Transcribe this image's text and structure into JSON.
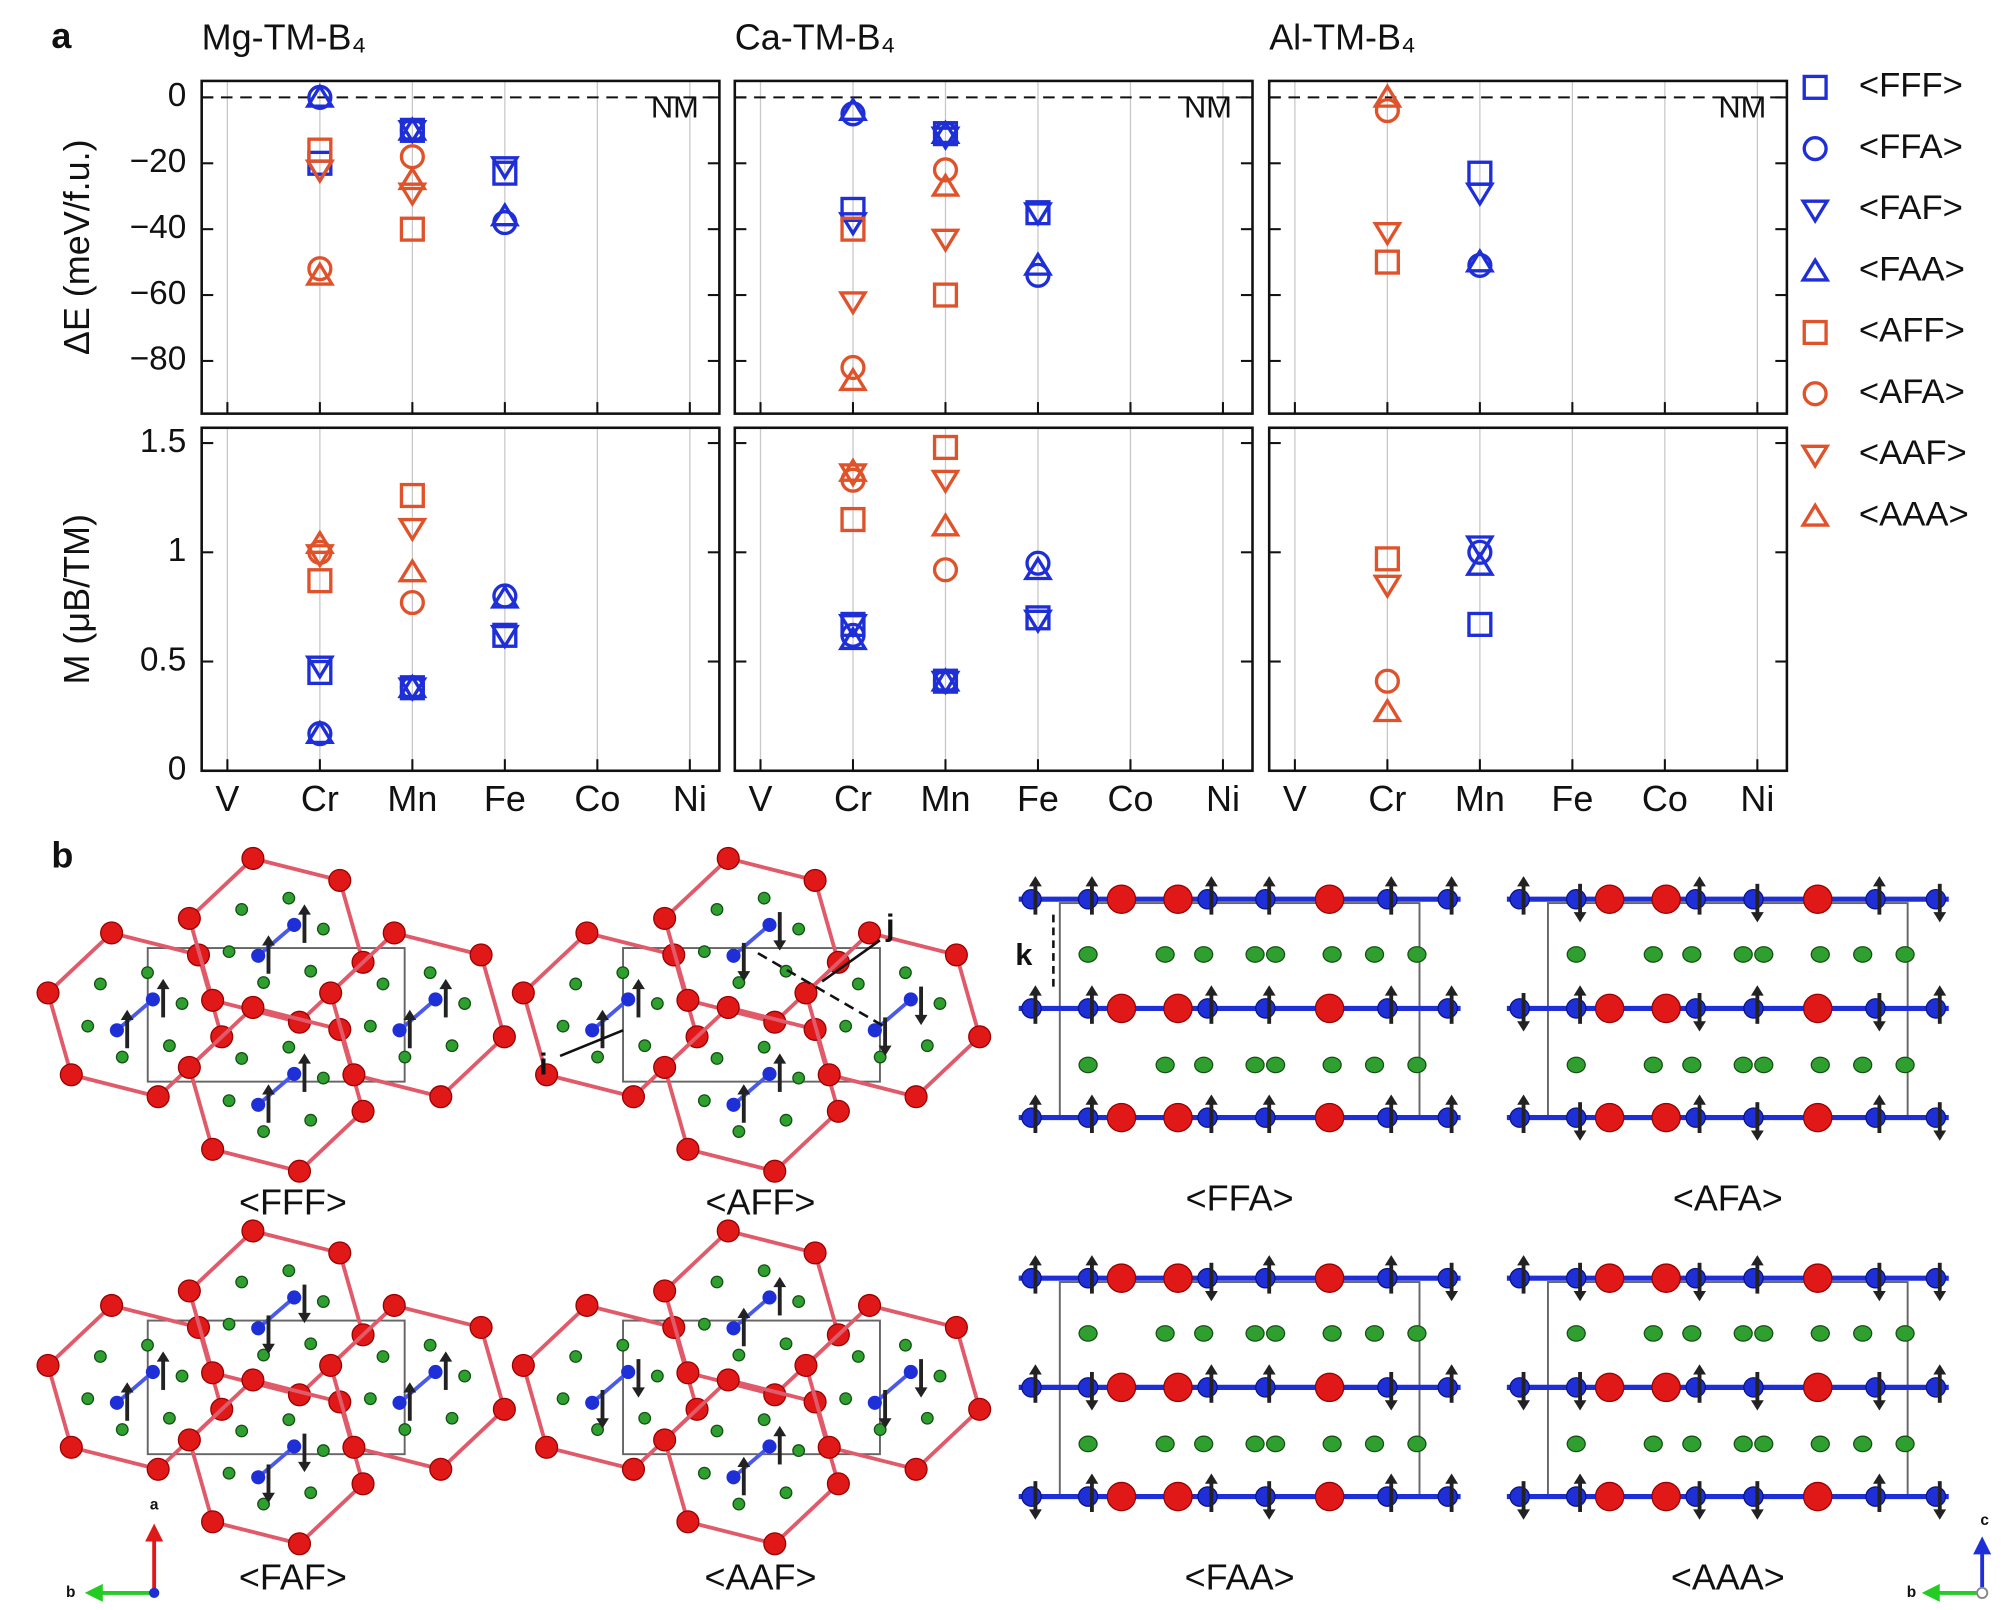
{
  "panel_a": "a",
  "panel_b": "b",
  "chart_data": [
    {
      "type": "scatter",
      "title": "Mg-TM-B₄",
      "y_label": "ΔE (meV/f.u.)",
      "annotation": "NM",
      "ref_line": 0,
      "grid": true,
      "categories": [
        "V",
        "Cr",
        "Mn",
        "Fe",
        "Co",
        "Ni"
      ],
      "ylim": [
        -96,
        5
      ],
      "yticks": [
        0,
        {
          "value": -20,
          "label": "−20"
        },
        {
          "value": -40,
          "label": "−40"
        },
        {
          "value": -60,
          "label": "−60"
        },
        {
          "value": -80,
          "label": "−80"
        }
      ],
      "series": [
        {
          "name": "<FFF>",
          "color": "#1f2fd8",
          "marker": "square",
          "values": [
            null,
            -20,
            -10,
            -23,
            null,
            null
          ]
        },
        {
          "name": "<FFA>",
          "color": "#1f2fd8",
          "marker": "circle",
          "values": [
            null,
            0,
            -10,
            -38,
            null,
            null
          ]
        },
        {
          "name": "<FAF>",
          "color": "#1f2fd8",
          "marker": "triangle-down",
          "values": [
            null,
            -22,
            -10,
            -21,
            null,
            null
          ]
        },
        {
          "name": "<FAA>",
          "color": "#1f2fd8",
          "marker": "triangle-up",
          "values": [
            null,
            0,
            -10,
            -36,
            null,
            null
          ]
        },
        {
          "name": "<AFF>",
          "color": "#e0522a",
          "marker": "square",
          "values": [
            null,
            -16,
            -40,
            null,
            null,
            null
          ]
        },
        {
          "name": "<AFA>",
          "color": "#e0522a",
          "marker": "circle",
          "values": [
            null,
            -52,
            -18,
            null,
            null,
            null
          ]
        },
        {
          "name": "<AAF>",
          "color": "#e0522a",
          "marker": "triangle-down",
          "values": [
            null,
            -22,
            -29,
            null,
            null,
            null
          ]
        },
        {
          "name": "<AAA>",
          "color": "#e0522a",
          "marker": "triangle-up",
          "values": [
            null,
            -54,
            -25,
            null,
            null,
            null
          ]
        }
      ]
    },
    {
      "type": "scatter",
      "title": "Ca-TM-B₄",
      "annotation": "NM",
      "ref_line": 0,
      "grid": true,
      "categories": [
        "V",
        "Cr",
        "Mn",
        "Fe",
        "Co",
        "Ni"
      ],
      "ylim": [
        -96,
        5
      ],
      "yticks": [
        0,
        -20,
        -40,
        -60,
        -80
      ],
      "series": [
        {
          "name": "<FFF>",
          "color": "#1f2fd8",
          "marker": "square",
          "values": [
            null,
            -34,
            -11,
            -35,
            null,
            null
          ]
        },
        {
          "name": "<FFA>",
          "color": "#1f2fd8",
          "marker": "circle",
          "values": [
            null,
            -5,
            -11,
            -54,
            null,
            null
          ]
        },
        {
          "name": "<FAF>",
          "color": "#1f2fd8",
          "marker": "triangle-down",
          "values": [
            null,
            -38,
            -12,
            -35,
            null,
            null
          ]
        },
        {
          "name": "<FAA>",
          "color": "#1f2fd8",
          "marker": "triangle-up",
          "values": [
            null,
            -4,
            -11,
            -51,
            null,
            null
          ]
        },
        {
          "name": "<AFF>",
          "color": "#e0522a",
          "marker": "square",
          "values": [
            null,
            -40,
            -60,
            null,
            null,
            null
          ]
        },
        {
          "name": "<AFA>",
          "color": "#e0522a",
          "marker": "circle",
          "values": [
            null,
            -82,
            -22,
            null,
            null,
            null
          ]
        },
        {
          "name": "<AAF>",
          "color": "#e0522a",
          "marker": "triangle-down",
          "values": [
            null,
            -62,
            -43,
            null,
            null,
            null
          ]
        },
        {
          "name": "<AAA>",
          "color": "#e0522a",
          "marker": "triangle-up",
          "values": [
            null,
            -86,
            -27,
            null,
            null,
            null
          ]
        }
      ]
    },
    {
      "type": "scatter",
      "title": "Al-TM-B₄",
      "annotation": "NM",
      "ref_line": 0,
      "grid": true,
      "categories": [
        "V",
        "Cr",
        "Mn",
        "Fe",
        "Co",
        "Ni"
      ],
      "ylim": [
        -96,
        5
      ],
      "yticks": [
        0,
        -20,
        -40,
        -60,
        -80
      ],
      "series": [
        {
          "name": "<FFF>",
          "color": "#1f2fd8",
          "marker": "square",
          "values": [
            null,
            null,
            -23,
            null,
            null,
            null
          ]
        },
        {
          "name": "<FFA>",
          "color": "#1f2fd8",
          "marker": "circle",
          "values": [
            null,
            null,
            -51,
            null,
            null,
            null
          ]
        },
        {
          "name": "<FAF>",
          "color": "#1f2fd8",
          "marker": "triangle-down",
          "values": [
            null,
            null,
            -29,
            null,
            null,
            null
          ]
        },
        {
          "name": "<FAA>",
          "color": "#1f2fd8",
          "marker": "triangle-up",
          "values": [
            null,
            null,
            -50,
            null,
            null,
            null
          ]
        },
        {
          "name": "<AFF>",
          "color": "#e0522a",
          "marker": "square",
          "values": [
            null,
            -50,
            null,
            null,
            null,
            null
          ]
        },
        {
          "name": "<AFA>",
          "color": "#e0522a",
          "marker": "circle",
          "values": [
            null,
            -4,
            null,
            null,
            null,
            null
          ]
        },
        {
          "name": "<AAF>",
          "color": "#e0522a",
          "marker": "triangle-down",
          "values": [
            null,
            -41,
            null,
            null,
            null,
            null
          ]
        },
        {
          "name": "<AAA>",
          "color": "#e0522a",
          "marker": "triangle-up",
          "values": [
            null,
            0,
            null,
            null,
            null,
            null
          ]
        }
      ]
    },
    {
      "type": "scatter",
      "y_label": "M (μB/TM)",
      "grid": true,
      "categories": [
        "V",
        "Cr",
        "Mn",
        "Fe",
        "Co",
        "Ni"
      ],
      "ylim": [
        0,
        1.57
      ],
      "yticks": [
        0,
        0.5,
        1,
        1.5
      ],
      "series": [
        {
          "name": "<FFF>",
          "color": "#1f2fd8",
          "marker": "square",
          "values": [
            null,
            0.45,
            0.38,
            0.62,
            null,
            null
          ]
        },
        {
          "name": "<FFA>",
          "color": "#1f2fd8",
          "marker": "circle",
          "values": [
            null,
            0.17,
            0.38,
            0.8,
            null,
            null
          ]
        },
        {
          "name": "<FAF>",
          "color": "#1f2fd8",
          "marker": "triangle-down",
          "values": [
            null,
            0.48,
            0.38,
            0.62,
            null,
            null
          ]
        },
        {
          "name": "<FAA>",
          "color": "#1f2fd8",
          "marker": "triangle-up",
          "values": [
            null,
            0.17,
            0.38,
            0.79,
            null,
            null
          ]
        },
        {
          "name": "<AFF>",
          "color": "#e0522a",
          "marker": "square",
          "values": [
            null,
            0.87,
            1.26,
            null,
            null,
            null
          ]
        },
        {
          "name": "<AFA>",
          "color": "#e0522a",
          "marker": "circle",
          "values": [
            null,
            1.0,
            0.77,
            null,
            null,
            null
          ]
        },
        {
          "name": "<AAF>",
          "color": "#e0522a",
          "marker": "triangle-down",
          "values": [
            null,
            0.99,
            1.11,
            null,
            null,
            null
          ]
        },
        {
          "name": "<AAA>",
          "color": "#e0522a",
          "marker": "triangle-up",
          "values": [
            null,
            1.04,
            0.91,
            null,
            null,
            null
          ]
        }
      ]
    },
    {
      "type": "scatter",
      "grid": true,
      "categories": [
        "V",
        "Cr",
        "Mn",
        "Fe",
        "Co",
        "Ni"
      ],
      "ylim": [
        0,
        1.57
      ],
      "yticks": [
        0,
        0.5,
        1,
        1.5
      ],
      "series": [
        {
          "name": "<FFF>",
          "color": "#1f2fd8",
          "marker": "square",
          "values": [
            null,
            0.67,
            0.41,
            0.7,
            null,
            null
          ]
        },
        {
          "name": "<FFA>",
          "color": "#1f2fd8",
          "marker": "circle",
          "values": [
            null,
            0.62,
            0.41,
            0.95,
            null,
            null
          ]
        },
        {
          "name": "<FAF>",
          "color": "#1f2fd8",
          "marker": "triangle-down",
          "values": [
            null,
            0.67,
            0.41,
            0.69,
            null,
            null
          ]
        },
        {
          "name": "<FAA>",
          "color": "#1f2fd8",
          "marker": "triangle-up",
          "values": [
            null,
            0.6,
            0.41,
            0.92,
            null,
            null
          ]
        },
        {
          "name": "<AFF>",
          "color": "#e0522a",
          "marker": "square",
          "values": [
            null,
            1.15,
            1.48,
            null,
            null,
            null
          ]
        },
        {
          "name": "<AFA>",
          "color": "#e0522a",
          "marker": "circle",
          "values": [
            null,
            1.33,
            0.92,
            null,
            null,
            null
          ]
        },
        {
          "name": "<AAF>",
          "color": "#e0522a",
          "marker": "triangle-down",
          "values": [
            null,
            1.36,
            1.33,
            null,
            null,
            null
          ]
        },
        {
          "name": "<AAA>",
          "color": "#e0522a",
          "marker": "triangle-up",
          "values": [
            null,
            1.37,
            1.12,
            null,
            null,
            null
          ]
        }
      ]
    },
    {
      "type": "scatter",
      "grid": true,
      "categories": [
        "V",
        "Cr",
        "Mn",
        "Fe",
        "Co",
        "Ni"
      ],
      "ylim": [
        0,
        1.57
      ],
      "yticks": [
        0,
        0.5,
        1,
        1.5
      ],
      "series": [
        {
          "name": "<FFF>",
          "color": "#1f2fd8",
          "marker": "square",
          "values": [
            null,
            null,
            0.67,
            null,
            null,
            null
          ]
        },
        {
          "name": "<FFA>",
          "color": "#1f2fd8",
          "marker": "circle",
          "values": [
            null,
            null,
            1.0,
            null,
            null,
            null
          ]
        },
        {
          "name": "<FAF>",
          "color": "#1f2fd8",
          "marker": "triangle-down",
          "values": [
            null,
            null,
            1.03,
            null,
            null,
            null
          ]
        },
        {
          "name": "<FAA>",
          "color": "#1f2fd8",
          "marker": "triangle-up",
          "values": [
            null,
            null,
            0.94,
            null,
            null,
            null
          ]
        },
        {
          "name": "<AFF>",
          "color": "#e0522a",
          "marker": "square",
          "values": [
            null,
            0.97,
            null,
            null,
            null,
            null
          ]
        },
        {
          "name": "<AFA>",
          "color": "#e0522a",
          "marker": "circle",
          "values": [
            null,
            0.41,
            null,
            null,
            null,
            null
          ]
        },
        {
          "name": "<AAF>",
          "color": "#e0522a",
          "marker": "triangle-down",
          "values": [
            null,
            0.85,
            null,
            null,
            null,
            null
          ]
        },
        {
          "name": "<AAA>",
          "color": "#e0522a",
          "marker": "triangle-up",
          "values": [
            null,
            0.27,
            null,
            null,
            null,
            null
          ]
        }
      ]
    }
  ],
  "structures": {
    "hex_labels": [
      "<FFF>",
      "<AFF>",
      "<FAF>",
      "<AAF>"
    ],
    "rect_labels": [
      "<FFA>",
      "<AFA>",
      "<FAA>",
      "<AAA>"
    ],
    "annotations": [
      "i",
      "j",
      "k"
    ],
    "axes_left": [
      "a",
      "b"
    ],
    "axes_right": [
      "c",
      "b"
    ]
  }
}
